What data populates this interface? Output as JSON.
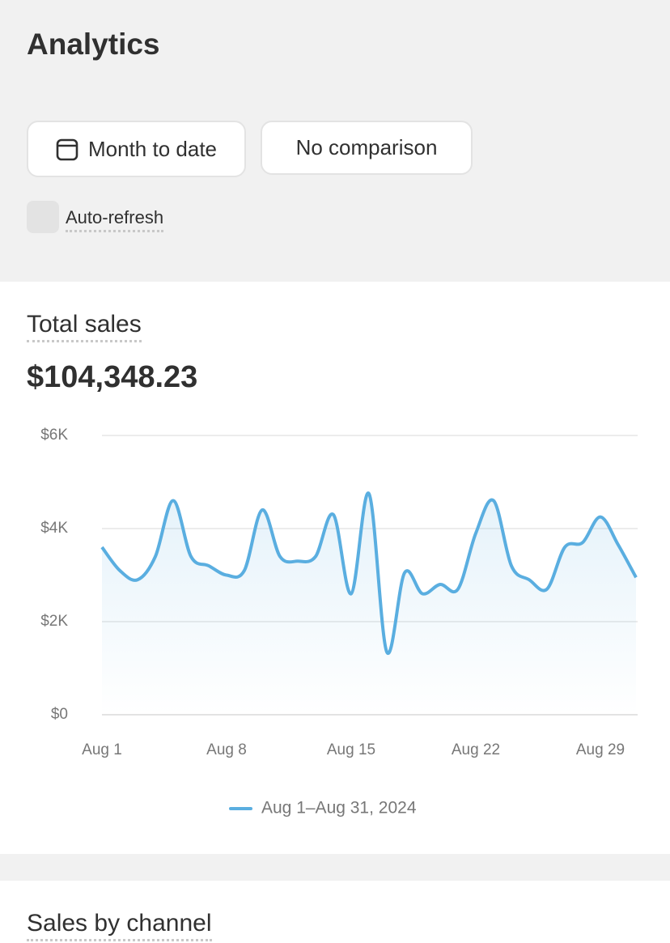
{
  "header": {
    "title": "Analytics"
  },
  "filters": {
    "date_range": "Month to date",
    "comparison": "No comparison",
    "auto_refresh": "Auto-refresh"
  },
  "card": {
    "title": "Total sales",
    "total": "$104,348.23"
  },
  "chart_data": {
    "type": "line",
    "categories": [
      "Aug 1",
      null,
      null,
      null,
      null,
      null,
      null,
      "Aug 8",
      null,
      null,
      null,
      null,
      null,
      null,
      "Aug 15",
      null,
      null,
      null,
      null,
      null,
      null,
      "Aug 22",
      null,
      null,
      null,
      null,
      null,
      null,
      "Aug 29",
      null,
      null
    ],
    "series": [
      {
        "name": "Aug 1–Aug 31, 2024",
        "color": "#5aaee0",
        "values": [
          3600,
          3100,
          2900,
          3400,
          4600,
          3400,
          3200,
          3000,
          3100,
          4400,
          3400,
          3300,
          3400,
          4300,
          2600,
          4750,
          1350,
          3050,
          2600,
          2800,
          2700,
          3900,
          4600,
          3200,
          2900,
          2700,
          3600,
          3700,
          4250,
          3650,
          2950
        ]
      }
    ],
    "ylim": [
      0,
      6000
    ],
    "yticks": [
      {
        "value": 0,
        "label": "$0"
      },
      {
        "value": 2000,
        "label": "$2K"
      },
      {
        "value": 4000,
        "label": "$4K"
      },
      {
        "value": 6000,
        "label": "$6K"
      }
    ],
    "grid": true
  },
  "next_card": {
    "title": "Sales by channel"
  }
}
